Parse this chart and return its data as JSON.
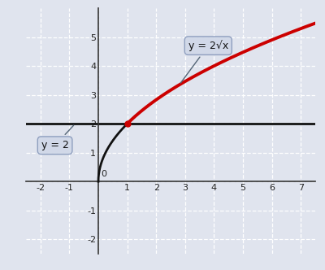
{
  "xlim": [
    -2.5,
    7.5
  ],
  "ylim": [
    -2.5,
    6.0
  ],
  "xticks": [
    -2,
    -1,
    0,
    1,
    2,
    3,
    4,
    5,
    6,
    7
  ],
  "yticks": [
    -2,
    -1,
    0,
    1,
    2,
    3,
    4,
    5
  ],
  "background_color": "#e0e4ee",
  "grid_color": "#ffffff",
  "curve_black_color": "#111111",
  "curve_red_color": "#cc0000",
  "hline_color": "#111111",
  "hline_y": 2,
  "intersection_x": 1,
  "intersection_y": 2,
  "label_sqrt_text": "y = 2√x",
  "label_y2_text": "y = 2",
  "annotation_box_facecolor": "#d0d8e8",
  "annotation_box_edgecolor": "#8899bb",
  "line_width": 2.0,
  "tick_fontsize": 8,
  "annot_fontsize": 9
}
